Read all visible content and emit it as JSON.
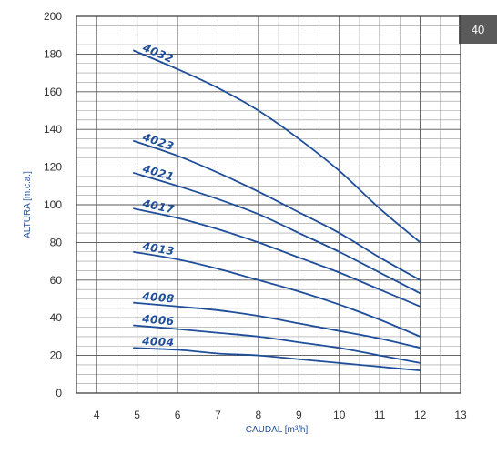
{
  "page_number": "40",
  "chart_data": {
    "type": "line",
    "xlabel": "CAUDAL [m³/h]",
    "ylabel": "ALTURA [m.c.a.]",
    "xlim": [
      3.5,
      13
    ],
    "ylim": [
      0,
      200
    ],
    "x_ticks": [
      "4",
      "5",
      "6",
      "7",
      "8",
      "9",
      "10",
      "11",
      "12",
      "13"
    ],
    "y_ticks": [
      "0",
      "20",
      "40",
      "60",
      "80",
      "100",
      "120",
      "140",
      "160",
      "180",
      "200"
    ],
    "grid": true,
    "line_color": "#1f4e9a",
    "series": [
      {
        "name": "4032",
        "x": [
          4.9,
          6,
          7,
          8,
          9,
          10,
          11,
          12
        ],
        "y": [
          182,
          172,
          162,
          150,
          135,
          118,
          98,
          80
        ]
      },
      {
        "name": "4023",
        "x": [
          4.9,
          6,
          7,
          8,
          9,
          10,
          11,
          12
        ],
        "y": [
          134,
          126,
          117,
          107,
          96,
          85,
          72,
          60
        ]
      },
      {
        "name": "4021",
        "x": [
          4.9,
          6,
          7,
          8,
          9,
          10,
          11,
          12
        ],
        "y": [
          117,
          110,
          103,
          95,
          85,
          75,
          64,
          53
        ]
      },
      {
        "name": "4017",
        "x": [
          4.9,
          6,
          7,
          8,
          9,
          10,
          11,
          12
        ],
        "y": [
          98,
          93,
          87,
          80,
          72,
          64,
          55,
          46
        ]
      },
      {
        "name": "4013",
        "x": [
          4.9,
          6,
          7,
          8,
          9,
          10,
          11,
          12
        ],
        "y": [
          75,
          71,
          66,
          60,
          54,
          47,
          39,
          30
        ]
      },
      {
        "name": "4008",
        "x": [
          4.9,
          6,
          7,
          8,
          9,
          10,
          11,
          12
        ],
        "y": [
          48,
          46,
          44,
          41,
          37,
          33,
          29,
          24
        ]
      },
      {
        "name": "4006",
        "x": [
          4.9,
          6,
          7,
          8,
          9,
          10,
          11,
          12
        ],
        "y": [
          36,
          34,
          32,
          30,
          27,
          24,
          20,
          16
        ]
      },
      {
        "name": "4004",
        "x": [
          4.9,
          6,
          7,
          8,
          9,
          10,
          11,
          12
        ],
        "y": [
          24,
          23,
          21,
          20,
          18,
          16,
          14,
          12
        ]
      }
    ]
  }
}
